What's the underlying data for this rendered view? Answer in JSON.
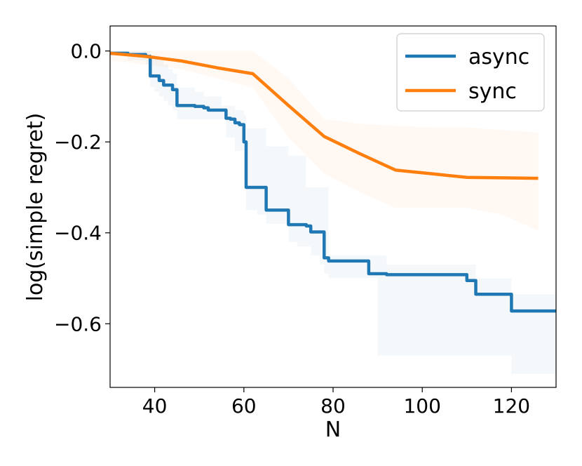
{
  "chart_data": {
    "type": "line",
    "title": "",
    "xlabel": "N",
    "ylabel": "log(simple regret)",
    "xlim": [
      30,
      130
    ],
    "ylim": [
      -0.74,
      0.055
    ],
    "xticks": [
      40,
      60,
      80,
      100,
      120
    ],
    "xtick_labels": [
      "40",
      "60",
      "80",
      "100",
      "120"
    ],
    "yticks": [
      0.0,
      -0.2,
      -0.4,
      -0.6
    ],
    "ytick_labels": [
      "0.0",
      "−0.2",
      "−0.4",
      "−0.6"
    ],
    "grid": false,
    "legend_position": "top-right",
    "series": [
      {
        "name": "async",
        "color": "#1f77b4",
        "step": true,
        "x": [
          30,
          34,
          38,
          39,
          40,
          41,
          42,
          43,
          44,
          45,
          47,
          49,
          50,
          51,
          52,
          53,
          55,
          56,
          57,
          58,
          59,
          60,
          60.5,
          61,
          63,
          65,
          66,
          68,
          70,
          71,
          72,
          74,
          75,
          77,
          78,
          79,
          82,
          85,
          87,
          88,
          90,
          92,
          95,
          100,
          105,
          109,
          110,
          111,
          112,
          113,
          115,
          117,
          119,
          120,
          125,
          130
        ],
        "y": [
          -0.005,
          -0.008,
          -0.012,
          -0.055,
          -0.055,
          -0.065,
          -0.075,
          -0.075,
          -0.085,
          -0.12,
          -0.12,
          -0.122,
          -0.122,
          -0.125,
          -0.13,
          -0.13,
          -0.13,
          -0.148,
          -0.15,
          -0.158,
          -0.162,
          -0.2,
          -0.3,
          -0.3,
          -0.3,
          -0.35,
          -0.35,
          -0.35,
          -0.382,
          -0.382,
          -0.382,
          -0.385,
          -0.398,
          -0.398,
          -0.455,
          -0.462,
          -0.462,
          -0.462,
          -0.462,
          -0.49,
          -0.49,
          -0.492,
          -0.492,
          -0.492,
          -0.492,
          -0.492,
          -0.505,
          -0.505,
          -0.535,
          -0.535,
          -0.535,
          -0.535,
          -0.535,
          -0.572,
          -0.572,
          -0.572
        ],
        "lower": [
          -0.01,
          -0.02,
          -0.03,
          -0.08,
          -0.09,
          -0.1,
          -0.11,
          -0.12,
          -0.13,
          -0.15,
          -0.15,
          -0.15,
          -0.15,
          -0.15,
          -0.15,
          -0.15,
          -0.15,
          -0.19,
          -0.19,
          -0.22,
          -0.22,
          -0.28,
          -0.35,
          -0.35,
          -0.36,
          -0.38,
          -0.38,
          -0.38,
          -0.42,
          -0.42,
          -0.43,
          -0.43,
          -0.45,
          -0.47,
          -0.49,
          -0.5,
          -0.5,
          -0.5,
          -0.5,
          -0.5,
          -0.67,
          -0.67,
          -0.67,
          -0.67,
          -0.67,
          -0.67,
          -0.67,
          -0.67,
          -0.67,
          -0.67,
          -0.67,
          -0.67,
          -0.67,
          -0.71,
          -0.71,
          -0.71
        ],
        "upper": [
          0.0,
          0.0,
          0.0,
          -0.01,
          -0.01,
          -0.02,
          -0.03,
          -0.04,
          -0.05,
          -0.08,
          -0.08,
          -0.09,
          -0.09,
          -0.1,
          -0.1,
          -0.1,
          -0.12,
          -0.12,
          -0.12,
          -0.13,
          -0.13,
          -0.14,
          -0.17,
          -0.17,
          -0.17,
          -0.21,
          -0.21,
          -0.21,
          -0.23,
          -0.23,
          -0.23,
          -0.3,
          -0.3,
          -0.3,
          -0.3,
          -0.45,
          -0.45,
          -0.45,
          -0.45,
          -0.45,
          -0.45,
          -0.47,
          -0.47,
          -0.47,
          -0.47,
          -0.47,
          -0.47,
          -0.47,
          -0.5,
          -0.5,
          -0.5,
          -0.5,
          -0.5,
          -0.535,
          -0.535,
          -0.535
        ]
      },
      {
        "name": "sync",
        "color": "#ff7f0e",
        "step": false,
        "x": [
          30,
          38,
          46,
          54,
          62,
          70,
          78,
          86,
          94,
          102,
          110,
          118,
          126
        ],
        "y": [
          -0.005,
          -0.012,
          -0.022,
          -0.037,
          -0.05,
          -0.12,
          -0.188,
          -0.226,
          -0.262,
          -0.27,
          -0.278,
          -0.279,
          -0.28
        ],
        "lower": [
          -0.02,
          -0.03,
          -0.04,
          -0.06,
          -0.08,
          -0.19,
          -0.27,
          -0.31,
          -0.345,
          -0.345,
          -0.345,
          -0.36,
          -0.395
        ],
        "upper": [
          0.0,
          0.0,
          0.0,
          0.0,
          0.0,
          -0.06,
          -0.15,
          -0.16,
          -0.165,
          -0.168,
          -0.168,
          -0.174,
          -0.18
        ]
      }
    ]
  }
}
